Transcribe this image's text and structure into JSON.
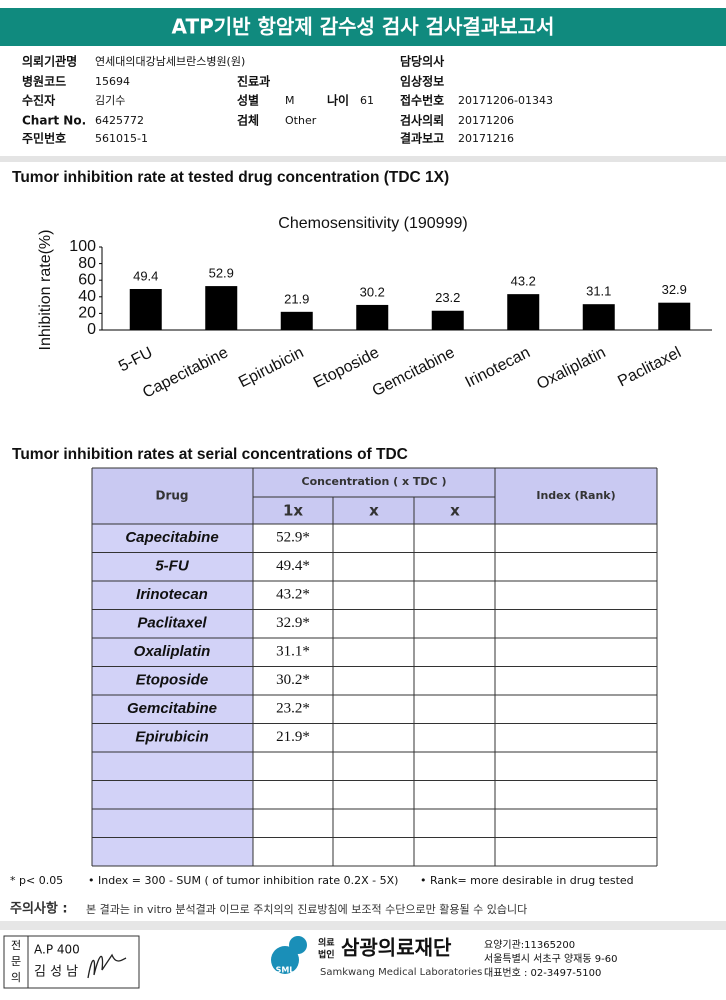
{
  "header": {
    "title": "ATP기반 항암제 감수성 검사 검사결과보고서"
  },
  "info": [
    {
      "label": "의뢰기관명",
      "value": "연세대의대강남세브란스병원(원)"
    },
    {
      "label": "담당의사"
    },
    {
      "label": "병원코드",
      "value": "15694"
    },
    {
      "label": "진료과"
    },
    {
      "label": "임상정보"
    },
    {
      "label": "수진자",
      "value": "김기수"
    },
    {
      "label": "성별",
      "value": "M"
    },
    {
      "label": "나이",
      "value": "61"
    },
    {
      "label": "접수번호",
      "value": "20171206-01343"
    },
    {
      "label": "Chart No.",
      "value": "6425772"
    },
    {
      "label": "검체",
      "value": "Other"
    },
    {
      "label": "검사의뢰",
      "value": "20171206"
    },
    {
      "label": "주민번호",
      "value": "561015-1"
    },
    {
      "label": "결과보고",
      "value": "20171216"
    }
  ],
  "section1": {
    "heading": "Tumor inhibition rate at tested drug concentration (TDC 1X)"
  },
  "chart_data": {
    "type": "bar",
    "title": "Chemosensitivity (190999)",
    "y_label": "Inhibition rate(%)",
    "categories": [
      "5-FU",
      "Capecitabine",
      "Epirubicin",
      "Etoposide",
      "Gemcitabine",
      "Irinotecan",
      "Oxaliplatin",
      "Paclitaxel"
    ],
    "values": [
      49.4,
      52.9,
      21.9,
      30.2,
      23.2,
      43.2,
      31.1,
      32.9
    ],
    "color": "#000000",
    "ylim": [
      0,
      100
    ],
    "yticks": [
      0,
      20,
      40,
      60,
      80,
      100
    ],
    "grid": false
  },
  "section2": {
    "heading": "Tumor inhibition rates at serial concentrations of TDC"
  },
  "table": {
    "header": {
      "drug": "Drug",
      "concentration": "Concentration ( x TDC )",
      "index": "Index (Rank)",
      "sub": [
        "1x",
        "x",
        "x"
      ]
    },
    "rows": [
      [
        "Capecitabine",
        "52.9*"
      ],
      [
        "5-FU",
        "49.4*"
      ],
      [
        "Irinotecan",
        "43.2*"
      ],
      [
        "Paclitaxel",
        "32.9*"
      ],
      [
        "Oxaliplatin",
        "31.1*"
      ],
      [
        "Etoposide",
        "30.2*"
      ],
      [
        "Gemcitabine",
        "23.2*"
      ],
      [
        "Epirubicin",
        "21.9*"
      ]
    ]
  },
  "footnotes": [
    "* p< 0.05",
    "• Index = 300 - SUM ( of tumor inhibition rate 0.2X  -  5X)",
    "• Rank= more desirable in drug tested"
  ],
  "notice": {
    "label": "주의사항 :",
    "text": "본 결과는 in vitro 분석결과 이므로 주치의의 진료방침에 보조적 수단으로만 활용될 수 있습니다"
  },
  "footer": {
    "stamp": [
      "전",
      "문",
      "의"
    ],
    "code": "A.P 400",
    "name": "김 성 남",
    "logo_mark": "SML",
    "logo_small": [
      "의료",
      "법인"
    ],
    "org": "삼광의료재단",
    "org_en": "Samkwang Medical Laboratories",
    "contact": [
      "요양기관:11365200",
      "서울특별시 서초구 양재동 9-60",
      "대표번호 : 02-3497-5100"
    ]
  }
}
